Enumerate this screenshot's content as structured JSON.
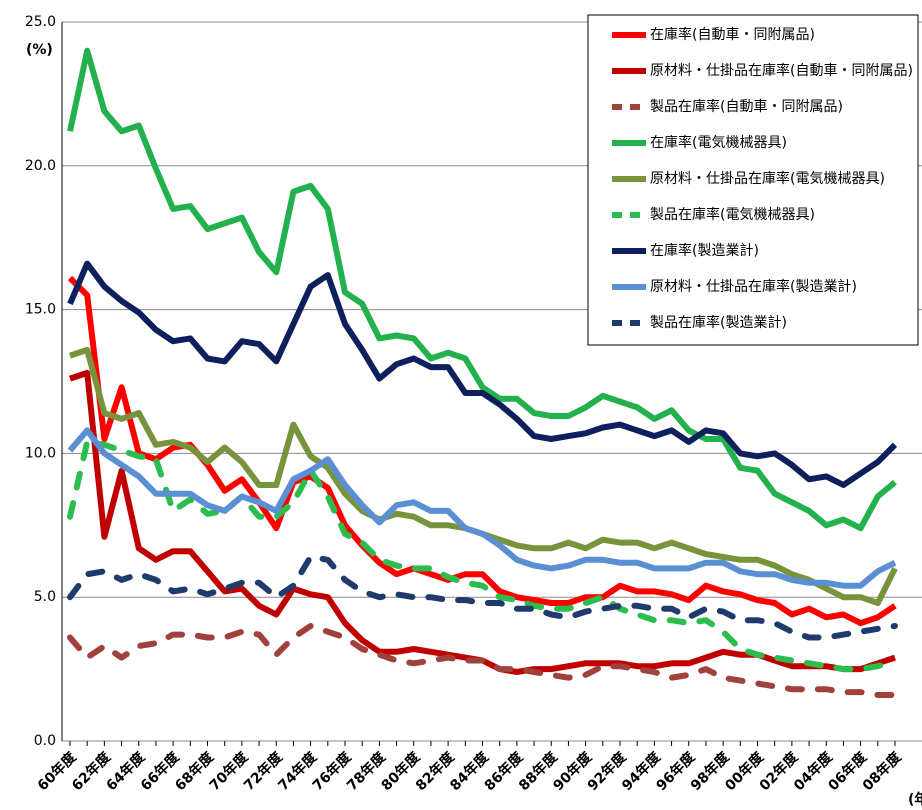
{
  "chart_data": {
    "type": "line",
    "y_unit": "(%)",
    "x_label": "(年度)",
    "categories": [
      "60年度",
      null,
      "62年度",
      null,
      "64年度",
      null,
      "66年度",
      null,
      "68年度",
      null,
      "70年度",
      null,
      "72年度",
      null,
      "74年度",
      null,
      "76年度",
      null,
      "78年度",
      null,
      "80年度",
      null,
      "82年度",
      null,
      "84年度",
      null,
      "86年度",
      null,
      "88年度",
      null,
      "90年度",
      null,
      "92年度",
      null,
      "94年度",
      null,
      "96年度",
      null,
      "98年度",
      null,
      "00年度",
      null,
      "02年度",
      null,
      "04年度",
      null,
      "06年度",
      null,
      "08年度"
    ],
    "ylim": [
      0,
      25
    ],
    "yticks": [
      {
        "value": 0,
        "label": "0.0"
      },
      {
        "value": 5,
        "label": "5.0"
      },
      {
        "value": 10,
        "label": "10.0"
      },
      {
        "value": 15,
        "label": "15.0"
      },
      {
        "value": 20,
        "label": "20.0"
      },
      {
        "value": 25,
        "label": "25.0"
      }
    ],
    "grid": true,
    "legend": "upper right",
    "series": [
      {
        "name": "在庫率(自動車・同附属品)",
        "color": "#ff0000",
        "dashed": false,
        "values": [
          16.1,
          15.5,
          10.5,
          12.3,
          10.0,
          9.8,
          10.2,
          10.3,
          9.6,
          8.7,
          9.1,
          8.3,
          7.4,
          9.0,
          9.2,
          8.8,
          7.5,
          6.8,
          6.2,
          5.8,
          6.0,
          5.8,
          5.6,
          5.8,
          5.8,
          5.2,
          5.0,
          4.9,
          4.8,
          4.8,
          5.0,
          5.0,
          5.4,
          5.2,
          5.2,
          5.1,
          4.9,
          5.4,
          5.2,
          5.1,
          4.9,
          4.8,
          4.4,
          4.6,
          4.3,
          4.4,
          4.1,
          4.3,
          4.7
        ]
      },
      {
        "name": "原材料・仕掛品在庫率(自動車・同附属品)",
        "color": "#c00000",
        "dashed": false,
        "values": [
          12.6,
          12.8,
          7.1,
          9.4,
          6.7,
          6.3,
          6.6,
          6.6,
          5.9,
          5.2,
          5.3,
          4.7,
          4.4,
          5.3,
          5.1,
          5.0,
          4.1,
          3.5,
          3.1,
          3.1,
          3.2,
          3.1,
          3.0,
          2.9,
          2.8,
          2.5,
          2.4,
          2.5,
          2.5,
          2.6,
          2.7,
          2.7,
          2.7,
          2.6,
          2.6,
          2.7,
          2.7,
          2.9,
          3.1,
          3.0,
          3.0,
          2.8,
          2.6,
          2.6,
          2.6,
          2.5,
          2.5,
          2.7,
          2.9
        ]
      },
      {
        "name": "製品在庫率(自動車・同附属品)",
        "color": "#a0413c",
        "dashed": true,
        "values": [
          3.6,
          2.9,
          3.3,
          2.9,
          3.3,
          3.4,
          3.7,
          3.7,
          3.6,
          3.6,
          3.8,
          3.7,
          3.0,
          3.6,
          4.0,
          3.8,
          3.6,
          3.2,
          3.0,
          2.8,
          2.7,
          2.8,
          2.9,
          2.8,
          2.8,
          2.5,
          2.5,
          2.4,
          2.3,
          2.2,
          2.3,
          2.6,
          2.6,
          2.5,
          2.4,
          2.2,
          2.3,
          2.5,
          2.2,
          2.1,
          2.0,
          1.9,
          1.8,
          1.8,
          1.8,
          1.7,
          1.7,
          1.6,
          1.6
        ]
      },
      {
        "name": "在庫率(電気機械器具)",
        "color": "#22b14c",
        "dashed": false,
        "values": [
          21.2,
          24.0,
          21.9,
          21.2,
          21.4,
          19.9,
          18.5,
          18.6,
          17.8,
          18.0,
          18.2,
          17.0,
          16.3,
          19.1,
          19.3,
          18.5,
          15.6,
          15.2,
          14.0,
          14.1,
          14.0,
          13.3,
          13.5,
          13.3,
          12.3,
          11.9,
          11.9,
          11.4,
          11.3,
          11.3,
          11.6,
          12.0,
          11.8,
          11.6,
          11.2,
          11.5,
          10.8,
          10.5,
          10.5,
          9.5,
          9.4,
          8.6,
          8.3,
          8.0,
          7.5,
          7.7,
          7.4,
          8.5,
          9.0
        ]
      },
      {
        "name": "原材料・仕掛品在庫率(電気機械器具)",
        "color": "#77933c",
        "dashed": false,
        "values": [
          13.4,
          13.6,
          11.4,
          11.2,
          11.4,
          10.3,
          10.4,
          10.2,
          9.7,
          10.2,
          9.7,
          8.9,
          8.9,
          11.0,
          9.9,
          9.5,
          8.6,
          8.0,
          7.7,
          7.9,
          7.8,
          7.5,
          7.5,
          7.4,
          7.2,
          7.0,
          6.8,
          6.7,
          6.7,
          6.9,
          6.7,
          7.0,
          6.9,
          6.9,
          6.7,
          6.9,
          6.7,
          6.5,
          6.4,
          6.3,
          6.3,
          6.1,
          5.8,
          5.6,
          5.3,
          5.0,
          5.0,
          4.8,
          6.0
        ]
      },
      {
        "name": "製品在庫率(電気機械器具)",
        "color": "#2dbd4f",
        "dashed": true,
        "values": [
          7.8,
          10.4,
          10.3,
          10.1,
          9.9,
          9.8,
          8.0,
          8.4,
          7.9,
          8.0,
          8.5,
          7.8,
          7.8,
          8.3,
          9.4,
          8.5,
          7.2,
          6.9,
          6.3,
          6.1,
          6.0,
          6.0,
          5.7,
          5.5,
          5.4,
          5.0,
          4.9,
          4.7,
          4.6,
          4.6,
          4.8,
          5.0,
          4.6,
          4.4,
          4.2,
          4.2,
          4.1,
          4.2,
          3.8,
          3.2,
          3.0,
          2.9,
          2.8,
          2.7,
          2.6,
          2.5,
          2.5,
          2.6,
          2.8
        ]
      },
      {
        "name": "在庫率(製造業計)",
        "color": "#0d1f5c",
        "dashed": false,
        "values": [
          15.2,
          16.6,
          15.8,
          15.3,
          14.9,
          14.3,
          13.9,
          14.0,
          13.3,
          13.2,
          13.9,
          13.8,
          13.2,
          14.5,
          15.8,
          16.2,
          14.5,
          13.6,
          12.6,
          13.1,
          13.3,
          13.0,
          13.0,
          12.1,
          12.1,
          11.7,
          11.2,
          10.6,
          10.5,
          10.6,
          10.7,
          10.9,
          11.0,
          10.8,
          10.6,
          10.8,
          10.4,
          10.8,
          10.7,
          10.0,
          9.9,
          10.0,
          9.6,
          9.1,
          9.2,
          8.9,
          9.3,
          9.7,
          10.3
        ]
      },
      {
        "name": "原材料・仕掛品在庫率(製造業計)",
        "color": "#5b8fd4",
        "dashed": false,
        "values": [
          10.1,
          10.8,
          10.0,
          9.6,
          9.2,
          8.6,
          8.6,
          8.6,
          8.2,
          8.0,
          8.5,
          8.3,
          8.0,
          9.1,
          9.4,
          9.8,
          8.9,
          8.2,
          7.6,
          8.2,
          8.3,
          8.0,
          8.0,
          7.4,
          7.2,
          6.8,
          6.3,
          6.1,
          6.0,
          6.1,
          6.3,
          6.3,
          6.2,
          6.2,
          6.0,
          6.0,
          6.0,
          6.2,
          6.2,
          5.9,
          5.8,
          5.8,
          5.6,
          5.5,
          5.5,
          5.4,
          5.4,
          5.9,
          6.2
        ]
      },
      {
        "name": "製品在庫率(製造業計)",
        "color": "#1f3b6e",
        "dashed": true,
        "values": [
          5.0,
          5.8,
          5.9,
          5.6,
          5.8,
          5.6,
          5.2,
          5.3,
          5.1,
          5.3,
          5.5,
          5.5,
          5.0,
          5.4,
          6.4,
          6.3,
          5.6,
          5.2,
          5.0,
          5.1,
          5.0,
          5.0,
          4.9,
          4.9,
          4.8,
          4.8,
          4.6,
          4.6,
          4.4,
          4.3,
          4.5,
          4.6,
          4.7,
          4.7,
          4.6,
          4.6,
          4.3,
          4.6,
          4.5,
          4.2,
          4.2,
          4.1,
          3.8,
          3.6,
          3.6,
          3.7,
          3.8,
          3.9,
          4.0
        ]
      }
    ]
  }
}
